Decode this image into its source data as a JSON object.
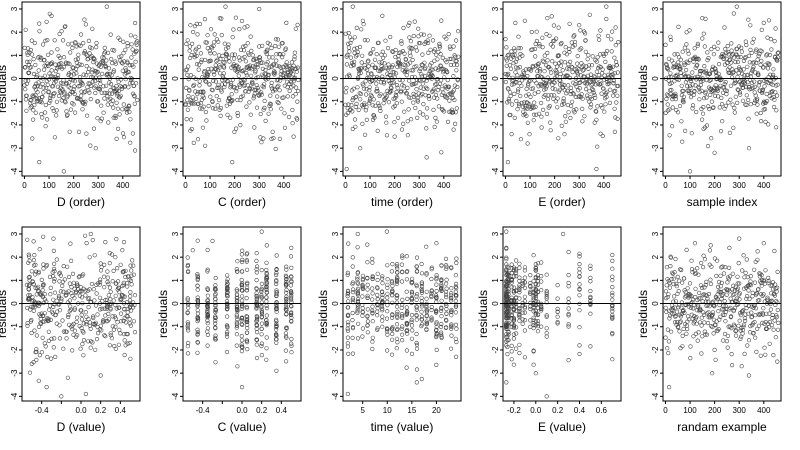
{
  "chart_data": [
    {
      "type": "scatter",
      "xlabel": "D (order)",
      "ylabel": "residuals",
      "xlim": [
        -10,
        470
      ],
      "ylim": [
        -4.2,
        3.3
      ],
      "x_ticks": [
        0,
        100,
        200,
        300,
        400
      ],
      "x_tick_labels": [
        "0",
        "100",
        "200",
        "300",
        "400"
      ],
      "y_ticks": [
        -4,
        -3,
        -2,
        -1,
        0,
        1,
        2,
        3
      ],
      "y_tick_labels": [
        "-4",
        "-3",
        "-2",
        "-1",
        "0",
        "1",
        "2",
        "3"
      ],
      "reference_line_y": 0,
      "n": 460,
      "x_gen": "index",
      "spread": 1.25,
      "seed": 11,
      "series": [
        {
          "x": [
            5,
            60,
            110,
            160,
            230,
            290,
            335,
            375,
            420,
            450
          ],
          "y": [
            2.1,
            -3.6,
            2.7,
            -4.0,
            1.9,
            -3.0,
            3.1,
            -2.6,
            1.4,
            -3.1
          ]
        }
      ]
    },
    {
      "type": "scatter",
      "xlabel": "C (order)",
      "ylabel": "residuals",
      "xlim": [
        -10,
        470
      ],
      "ylim": [
        -4.2,
        3.3
      ],
      "x_ticks": [
        0,
        100,
        200,
        300,
        400
      ],
      "x_tick_labels": [
        "0",
        "100",
        "200",
        "300",
        "400"
      ],
      "y_ticks": [
        -4,
        -3,
        -2,
        -1,
        0,
        1,
        2,
        3
      ],
      "y_tick_labels": [
        "-4",
        "-3",
        "-2",
        "-1",
        "0",
        "1",
        "2",
        "3"
      ],
      "reference_line_y": 0,
      "n": 460,
      "x_gen": "index",
      "spread": 1.25,
      "seed": 23,
      "series": [
        {
          "x": [
            20,
            80,
            140,
            190,
            240,
            300,
            350,
            410,
            440
          ],
          "y": [
            2.3,
            -2.9,
            2.6,
            -3.6,
            2.2,
            3.0,
            -2.6,
            2.4,
            -2.5
          ]
        }
      ]
    },
    {
      "type": "scatter",
      "xlabel": "time (order)",
      "ylabel": "residuals",
      "xlim": [
        -10,
        470
      ],
      "ylim": [
        -4.2,
        3.3
      ],
      "x_ticks": [
        0,
        100,
        200,
        300,
        400
      ],
      "x_tick_labels": [
        "0",
        "100",
        "200",
        "300",
        "400"
      ],
      "y_ticks": [
        -4,
        -3,
        -2,
        -1,
        0,
        1,
        2,
        3
      ],
      "y_tick_labels": [
        "-4",
        "-3",
        "-2",
        "-1",
        "0",
        "1",
        "2",
        "3"
      ],
      "reference_line_y": 0,
      "n": 460,
      "x_gen": "index",
      "spread": 1.25,
      "seed": 37,
      "series": [
        {
          "x": [
            5,
            30,
            60,
            150,
            200,
            260,
            330,
            390,
            440
          ],
          "y": [
            -3.9,
            3.1,
            -3.0,
            2.7,
            -2.5,
            2.4,
            -3.4,
            2.5,
            -2.2
          ]
        }
      ]
    },
    {
      "type": "scatter",
      "xlabel": "E (order)",
      "ylabel": "residuals",
      "xlim": [
        -10,
        470
      ],
      "ylim": [
        -4.2,
        3.3
      ],
      "x_ticks": [
        0,
        100,
        200,
        300,
        400
      ],
      "x_tick_labels": [
        "0",
        "100",
        "200",
        "300",
        "400"
      ],
      "y_ticks": [
        -4,
        -3,
        -2,
        -1,
        0,
        1,
        2,
        3
      ],
      "y_tick_labels": [
        "-4",
        "-3",
        "-2",
        "-1",
        "0",
        "1",
        "2",
        "3"
      ],
      "reference_line_y": 0,
      "n": 460,
      "x_gen": "index",
      "spread": 1.25,
      "seed": 41,
      "series": [
        {
          "x": [
            10,
            40,
            90,
            170,
            240,
            300,
            370,
            410,
            445
          ],
          "y": [
            -3.6,
            2.4,
            -2.8,
            2.6,
            -2.4,
            2.3,
            -3.9,
            3.1,
            -2.3
          ]
        }
      ]
    },
    {
      "type": "scatter",
      "xlabel": "sample index",
      "ylabel": "residuals",
      "xlim": [
        -10,
        470
      ],
      "ylim": [
        -4.2,
        3.3
      ],
      "x_ticks": [
        0,
        100,
        200,
        300,
        400
      ],
      "x_tick_labels": [
        "0",
        "100",
        "200",
        "300",
        "400"
      ],
      "y_ticks": [
        -4,
        -3,
        -2,
        -1,
        0,
        1,
        2,
        3
      ],
      "y_tick_labels": [
        "-4",
        "-3",
        "-2",
        "-1",
        "0",
        "1",
        "2",
        "3"
      ],
      "reference_line_y": 0,
      "n": 460,
      "x_gen": "index",
      "spread": 1.25,
      "seed": 53,
      "series": [
        {
          "x": [
            20,
            100,
            150,
            200,
            240,
            290,
            340,
            400,
            450
          ],
          "y": [
            1.8,
            -4.0,
            2.6,
            -3.2,
            2.2,
            3.1,
            -3.0,
            2.4,
            -2.1
          ]
        }
      ]
    },
    {
      "type": "scatter",
      "xlabel": "D (value)",
      "ylabel": "residuals",
      "xlim": [
        -0.6,
        0.6
      ],
      "ylim": [
        -4.2,
        3.3
      ],
      "x_ticks": [
        -0.4,
        -0.2,
        0.0,
        0.2,
        0.4
      ],
      "x_tick_labels": [
        "-0.4",
        "",
        "0.0",
        "0.2",
        "0.4"
      ],
      "y_ticks": [
        -4,
        -3,
        -2,
        -1,
        0,
        1,
        2,
        3
      ],
      "y_tick_labels": [
        "-4",
        "-3",
        "-2",
        "-1",
        "0",
        "1",
        "2",
        "3"
      ],
      "reference_line_y": 0,
      "n": 440,
      "x_gen": "uniform",
      "x_range": [
        -0.55,
        0.55
      ],
      "spread": 1.25,
      "seed": 67,
      "series": [
        {
          "x": [
            -0.5,
            -0.28,
            -0.2,
            0.1,
            0.2,
            0.42,
            -0.35,
            0.05
          ],
          "y": [
            -2.6,
            2.8,
            -4.0,
            3.0,
            -3.1,
            2.3,
            -3.6,
            -3.9
          ]
        }
      ]
    },
    {
      "type": "scatter",
      "xlabel": "C (value)",
      "ylabel": "residuals",
      "xlim": [
        -0.6,
        0.6
      ],
      "ylim": [
        -4.2,
        3.3
      ],
      "x_ticks": [
        -0.4,
        -0.2,
        0.0,
        0.2,
        0.4
      ],
      "x_tick_labels": [
        "-0.4",
        "",
        "0.0",
        "0.2",
        "0.4"
      ],
      "y_ticks": [
        -4,
        -3,
        -2,
        -1,
        0,
        1,
        2,
        3
      ],
      "y_tick_labels": [
        "-4",
        "-3",
        "-2",
        "-1",
        "0",
        "1",
        "2",
        "3"
      ],
      "reference_line_y": 0,
      "n": 440,
      "x_gen": "discrete",
      "x_values": [
        -0.55,
        -0.45,
        -0.35,
        -0.27,
        -0.15,
        -0.05,
        0.0,
        0.05,
        0.15,
        0.2,
        0.25,
        0.35,
        0.45,
        0.5
      ],
      "spread": 1.25,
      "seed": 79,
      "series": [
        {
          "x": [
            -0.5,
            -0.3,
            0.0,
            0.2,
            0.35,
            0.5
          ],
          "y": [
            2.3,
            2.7,
            -3.6,
            3.1,
            -2.9,
            2.4
          ]
        }
      ]
    },
    {
      "type": "scatter",
      "xlabel": "time (value)",
      "ylabel": "residuals",
      "xlim": [
        1,
        25
      ],
      "ylim": [
        -4.2,
        3.3
      ],
      "x_ticks": [
        5,
        10,
        15,
        20
      ],
      "x_tick_labels": [
        "5",
        "10",
        "15",
        "20"
      ],
      "y_ticks": [
        -4,
        -3,
        -2,
        -1,
        0,
        1,
        2,
        3
      ],
      "y_tick_labels": [
        "-4",
        "-3",
        "-2",
        "-1",
        "0",
        "1",
        "2",
        "3"
      ],
      "reference_line_y": 0,
      "n": 440,
      "x_gen": "discrete",
      "x_values": [
        2,
        3,
        4,
        5,
        6,
        7,
        8,
        9,
        10,
        11,
        12,
        13,
        14,
        15,
        16,
        17,
        18,
        19,
        20,
        21,
        22,
        23,
        24
      ],
      "spread": 1.25,
      "seed": 83,
      "series": [
        {
          "x": [
            2,
            4,
            12,
            16,
            20,
            24
          ],
          "y": [
            -3.9,
            3.0,
            1.7,
            -3.4,
            2.6,
            -2.3
          ]
        }
      ]
    },
    {
      "type": "scatter",
      "xlabel": "E (value)",
      "ylabel": "residuals",
      "xlim": [
        -0.3,
        0.78
      ],
      "ylim": [
        -4.2,
        3.3
      ],
      "x_ticks": [
        -0.2,
        0.0,
        0.2,
        0.4,
        0.6
      ],
      "x_tick_labels": [
        "-0.2",
        "0.0",
        "0.2",
        "0.4",
        "0.6"
      ],
      "y_ticks": [
        -4,
        -3,
        -2,
        -1,
        0,
        1,
        2,
        3
      ],
      "y_tick_labels": [
        "-4",
        "-3",
        "-2",
        "-1",
        "0",
        "1",
        "2",
        "3"
      ],
      "reference_line_y": 0,
      "n": 420,
      "x_gen": "clustered",
      "x_values": [
        -0.27,
        -0.26,
        -0.25,
        -0.22,
        -0.2,
        -0.18,
        -0.15,
        -0.12,
        -0.1,
        -0.05,
        -0.02,
        0.0,
        0.0,
        0.02,
        0.05,
        0.1,
        0.2,
        0.3,
        0.4,
        0.5,
        0.7
      ],
      "spread": 1.25,
      "seed": 97,
      "series": [
        {
          "x": [
            -0.27,
            -0.27,
            0.0,
            0.1,
            0.25,
            0.7
          ],
          "y": [
            2.4,
            -3.4,
            -3.0,
            -4.0,
            3.0,
            -2.4
          ]
        }
      ]
    },
    {
      "type": "scatter",
      "xlabel": "randam example",
      "ylabel": "residuals",
      "xlim": [
        -10,
        470
      ],
      "ylim": [
        -4.2,
        3.3
      ],
      "x_ticks": [
        0,
        100,
        200,
        300,
        400
      ],
      "x_tick_labels": [
        "0",
        "100",
        "200",
        "300",
        "400"
      ],
      "y_ticks": [
        -4,
        -3,
        -2,
        -1,
        0,
        1,
        2,
        3
      ],
      "y_tick_labels": [
        "-4",
        "-3",
        "-2",
        "-1",
        "0",
        "1",
        "2",
        "3"
      ],
      "reference_line_y": 0,
      "n": 460,
      "x_gen": "index",
      "spread": 1.2,
      "seed": 101,
      "series": [
        {
          "x": [
            15,
            120,
            190,
            260,
            300,
            340,
            400,
            455
          ],
          "y": [
            -3.6,
            2.6,
            -3.0,
            2.4,
            2.8,
            -3.1,
            2.6,
            -2.5
          ]
        }
      ]
    }
  ]
}
